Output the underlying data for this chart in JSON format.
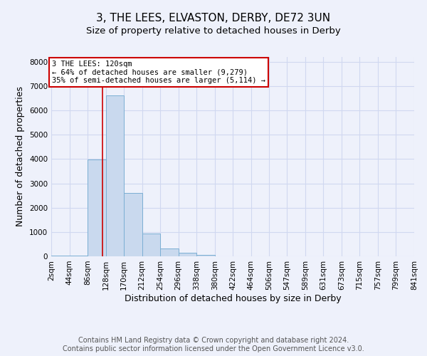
{
  "title": "3, THE LEES, ELVASTON, DERBY, DE72 3UN",
  "subtitle": "Size of property relative to detached houses in Derby",
  "xlabel": "Distribution of detached houses by size in Derby",
  "ylabel": "Number of detached properties",
  "bin_edges": [
    2,
    44,
    86,
    128,
    170,
    212,
    254,
    296,
    338,
    380,
    422,
    464,
    506,
    547,
    589,
    631,
    673,
    715,
    757,
    799,
    841
  ],
  "bar_heights": [
    25,
    25,
    3980,
    6620,
    2600,
    950,
    310,
    135,
    60,
    10,
    0,
    0,
    0,
    0,
    0,
    0,
    0,
    0,
    0,
    0
  ],
  "bar_color": "#c9d9ee",
  "bar_edge_color": "#7bafd4",
  "property_size": 120,
  "red_line_color": "#cc0000",
  "annotation_text": "3 THE LEES: 120sqm\n← 64% of detached houses are smaller (9,279)\n35% of semi-detached houses are larger (5,114) →",
  "annotation_box_color": "#ffffff",
  "annotation_box_edge_color": "#cc0000",
  "ylim": [
    0,
    8200
  ],
  "yticks": [
    0,
    1000,
    2000,
    3000,
    4000,
    5000,
    6000,
    7000,
    8000
  ],
  "tick_labels": [
    "2sqm",
    "44sqm",
    "86sqm",
    "128sqm",
    "170sqm",
    "212sqm",
    "254sqm",
    "296sqm",
    "338sqm",
    "380sqm",
    "422sqm",
    "464sqm",
    "506sqm",
    "547sqm",
    "589sqm",
    "631sqm",
    "673sqm",
    "715sqm",
    "757sqm",
    "799sqm",
    "841sqm"
  ],
  "footer_text": "Contains HM Land Registry data © Crown copyright and database right 2024.\nContains public sector information licensed under the Open Government Licence v3.0.",
  "background_color": "#eef1fb",
  "grid_color": "#d0d8f0",
  "title_fontsize": 11,
  "subtitle_fontsize": 9.5,
  "axis_label_fontsize": 9,
  "tick_fontsize": 7.5,
  "footer_fontsize": 7
}
